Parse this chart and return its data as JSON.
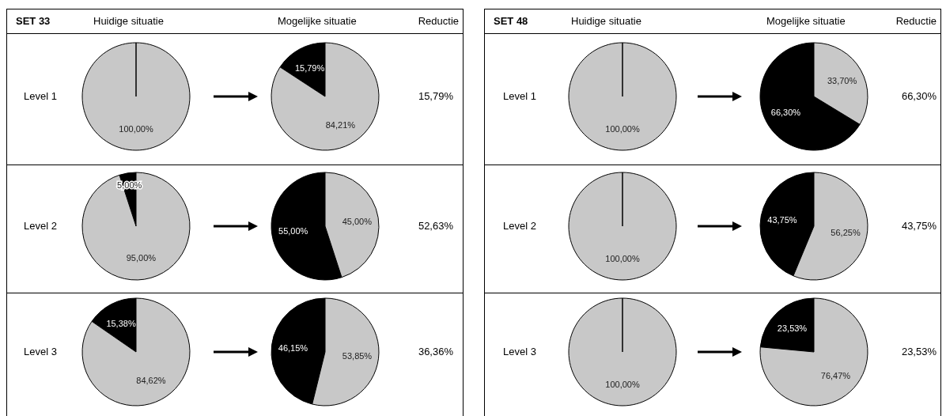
{
  "chart_data": [
    {
      "type": "other",
      "title": "SET 33",
      "annotations": [
        "Huidige situatie",
        "Mogelijke situatie",
        "Reductie"
      ]
    },
    {
      "type": "other",
      "annotations": [
        "Level 1",
        "15,79%"
      ]
    },
    {
      "type": "pie",
      "categories": [
        null
      ],
      "values": [
        100
      ],
      "colors": [
        "#c8c8c8"
      ],
      "value_labels": [
        "100,00%"
      ]
    },
    {
      "type": "pie",
      "categories": [
        null,
        null
      ],
      "values": [
        15.79,
        84.21
      ],
      "colors": [
        "#000000",
        "#c8c8c8"
      ],
      "value_labels": [
        "15,79%",
        "84,21%"
      ]
    },
    {
      "type": "other",
      "annotations": [
        "Level 2",
        "52,63%"
      ]
    },
    {
      "type": "pie",
      "categories": [
        null,
        null
      ],
      "values": [
        5,
        95
      ],
      "colors": [
        "#000000",
        "#c8c8c8"
      ],
      "value_labels": [
        "5,00%",
        "95,00%"
      ]
    },
    {
      "type": "pie",
      "categories": [
        null,
        null
      ],
      "values": [
        55,
        45
      ],
      "colors": [
        "#000000",
        "#c8c8c8"
      ],
      "value_labels": [
        "55,00%",
        "45,00%"
      ]
    },
    {
      "type": "other",
      "annotations": [
        "Level 3",
        "36,36%"
      ]
    },
    {
      "type": "pie",
      "categories": [
        null,
        null
      ],
      "values": [
        15.38,
        84.62
      ],
      "colors": [
        "#000000",
        "#c8c8c8"
      ],
      "value_labels": [
        "15,38%",
        "84,62%"
      ]
    },
    {
      "type": "pie",
      "categories": [
        null,
        null
      ],
      "values": [
        46.15,
        53.85
      ],
      "colors": [
        "#000000",
        "#c8c8c8"
      ],
      "value_labels": [
        "46,15%",
        "53,85%"
      ]
    },
    {
      "type": "other",
      "title": "SET 48",
      "annotations": [
        "Huidige situatie",
        "Mogelijke situatie",
        "Reductie"
      ]
    },
    {
      "type": "other",
      "annotations": [
        "Level 1",
        "66,30%"
      ]
    },
    {
      "type": "pie",
      "categories": [
        null
      ],
      "values": [
        100
      ],
      "colors": [
        "#c8c8c8"
      ],
      "value_labels": [
        "100,00%"
      ]
    },
    {
      "type": "pie",
      "categories": [
        null,
        null
      ],
      "values": [
        66.3,
        33.7
      ],
      "colors": [
        "#000000",
        "#c8c8c8"
      ],
      "value_labels": [
        "66,30%",
        "33,70%"
      ]
    },
    {
      "type": "other",
      "annotations": [
        "Level 2",
        "43,75%"
      ]
    },
    {
      "type": "pie",
      "categories": [
        null
      ],
      "values": [
        100
      ],
      "colors": [
        "#c8c8c8"
      ],
      "value_labels": [
        "100,00%"
      ]
    },
    {
      "type": "pie",
      "categories": [
        null,
        null
      ],
      "values": [
        43.75,
        56.25
      ],
      "colors": [
        "#000000",
        "#c8c8c8"
      ],
      "value_labels": [
        "43,75%",
        "56,25%"
      ]
    },
    {
      "type": "other",
      "annotations": [
        "Level 3",
        "23,53%"
      ]
    },
    {
      "type": "pie",
      "categories": [
        null
      ],
      "values": [
        100
      ],
      "colors": [
        "#c8c8c8"
      ],
      "value_labels": [
        "100,00%"
      ]
    },
    {
      "type": "pie",
      "categories": [
        null,
        null
      ],
      "values": [
        23.53,
        76.47
      ],
      "colors": [
        "#000000",
        "#c8c8c8"
      ],
      "value_labels": [
        "23,53%",
        "76,47%"
      ]
    }
  ]
}
